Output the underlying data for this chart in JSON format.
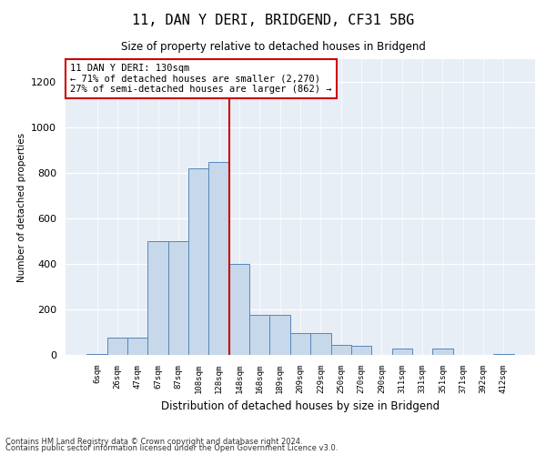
{
  "title": "11, DAN Y DERI, BRIDGEND, CF31 5BG",
  "subtitle": "Size of property relative to detached houses in Bridgend",
  "xlabel": "Distribution of detached houses by size in Bridgend",
  "ylabel": "Number of detached properties",
  "footnote1": "Contains HM Land Registry data © Crown copyright and database right 2024.",
  "footnote2": "Contains public sector information licensed under the Open Government Licence v3.0.",
  "annotation_title": "11 DAN Y DERI: 130sqm",
  "annotation_line1": "← 71% of detached houses are smaller (2,270)",
  "annotation_line2": "27% of semi-detached houses are larger (862) →",
  "bar_color": "#c6d8ea",
  "bar_edge_color": "#5588bb",
  "vline_color": "#cc0000",
  "bg_color": "#e8eef6",
  "categories": [
    "6sqm",
    "26sqm",
    "47sqm",
    "67sqm",
    "87sqm",
    "108sqm",
    "128sqm",
    "148sqm",
    "168sqm",
    "189sqm",
    "209sqm",
    "229sqm",
    "250sqm",
    "270sqm",
    "290sqm",
    "311sqm",
    "331sqm",
    "351sqm",
    "371sqm",
    "392sqm",
    "412sqm"
  ],
  "values": [
    5,
    75,
    75,
    500,
    500,
    820,
    850,
    400,
    175,
    175,
    95,
    95,
    45,
    40,
    0,
    30,
    0,
    30,
    0,
    0,
    5
  ],
  "vline_x": 6.5,
  "ylim": [
    0,
    1300
  ],
  "yticks": [
    0,
    200,
    400,
    600,
    800,
    1000,
    1200
  ]
}
